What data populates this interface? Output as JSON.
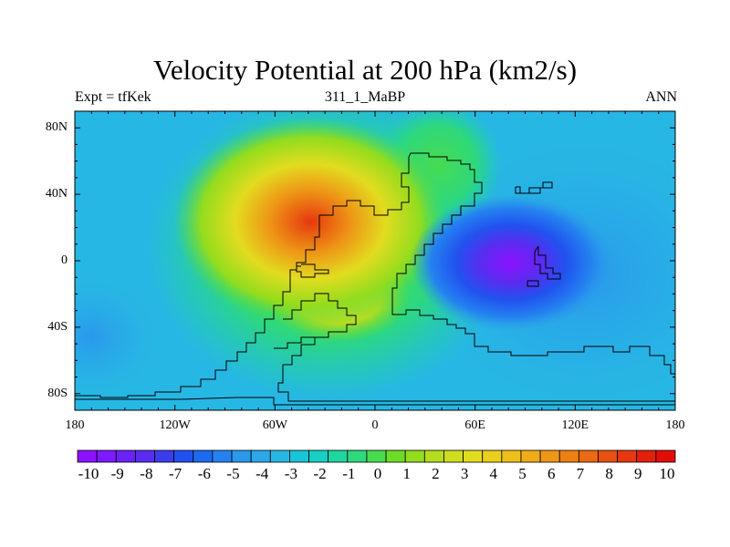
{
  "title": "Velocity Potential at 200 hPa (km2/s)",
  "subtitle_left": "Expt = tfKek",
  "subtitle_center": "311_1_MaBP",
  "subtitle_right": "ANN",
  "map": {
    "projection": "cylindrical equidistant",
    "lon_range": [
      -180,
      180
    ],
    "lat_range": [
      -90,
      90
    ],
    "lon_ticks": [
      {
        "value": -180,
        "label": "180"
      },
      {
        "value": -120,
        "label": "120W"
      },
      {
        "value": -60,
        "label": "60W"
      },
      {
        "value": 0,
        "label": "0"
      },
      {
        "value": 60,
        "label": "60E"
      },
      {
        "value": 120,
        "label": "120E"
      },
      {
        "value": 180,
        "label": "180"
      }
    ],
    "lat_ticks": [
      {
        "value": 80,
        "label": "80N"
      },
      {
        "value": 40,
        "label": "40N"
      },
      {
        "value": 0,
        "label": "0"
      },
      {
        "value": -40,
        "label": "40S"
      },
      {
        "value": -80,
        "label": "80S"
      }
    ],
    "features": [
      {
        "name": "positive maximum",
        "lon": -35,
        "lat": 22,
        "value": 9
      },
      {
        "name": "negative minimum",
        "lon": 72,
        "lat": 0,
        "value": -10
      }
    ]
  },
  "colorbar": {
    "labels": [
      "-10",
      "-9",
      "-8",
      "-7",
      "-6",
      "-5",
      "-4",
      "-3",
      "-2",
      "-1",
      "0",
      "1",
      "2",
      "3",
      "4",
      "5",
      "6",
      "7",
      "8",
      "9",
      "10"
    ],
    "colors": [
      "#8c12ff",
      "#7d1aff",
      "#6a22f7",
      "#5a2cf0",
      "#3c3ced",
      "#2152ef",
      "#1c6af0",
      "#2482f0",
      "#2a98ec",
      "#2aa8e8",
      "#27b7e4",
      "#1ac4d8",
      "#18cfc4",
      "#1fd5a0",
      "#2ed87c",
      "#48db50",
      "#6ddc26",
      "#93dc1e",
      "#b5dc1f",
      "#cfdc1f",
      "#e2dc1f",
      "#ead01d",
      "#edc01b",
      "#efab18",
      "#ee9616",
      "#ed8013",
      "#ea6912",
      "#e85110",
      "#e6380e",
      "#e3200c",
      "#e20c0a"
    ]
  }
}
